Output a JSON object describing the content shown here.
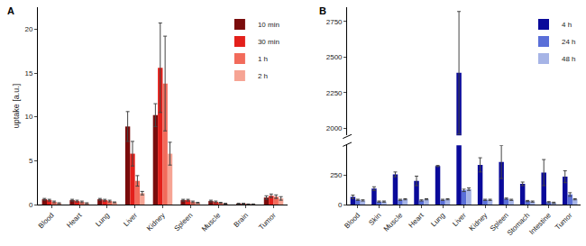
{
  "chart_data": [
    {
      "type": "bar",
      "title": "A",
      "ylabel": "uptake [a.u.]",
      "categories": [
        "Blood",
        "Heart",
        "Lung",
        "Liver",
        "Kidney",
        "Spleen",
        "Muscle",
        "Brain",
        "Tumor"
      ],
      "series": [
        {
          "name": "10 min",
          "color": "#7a0c0c",
          "values": [
            0.6,
            0.5,
            0.6,
            8.9,
            10.2,
            0.5,
            0.4,
            0.1,
            0.8
          ],
          "errors": [
            0.1,
            0.1,
            0.1,
            1.7,
            1.3,
            0.1,
            0.1,
            0.05,
            0.2
          ]
        },
        {
          "name": "30 min",
          "color": "#e3201b",
          "values": [
            0.5,
            0.4,
            0.5,
            5.8,
            15.6,
            0.5,
            0.3,
            0.1,
            1.0
          ],
          "errors": [
            0.1,
            0.1,
            0.1,
            1.4,
            5.1,
            0.1,
            0.1,
            0.05,
            0.2
          ]
        },
        {
          "name": "1 h",
          "color": "#f26b5b",
          "values": [
            0.3,
            0.3,
            0.4,
            2.7,
            13.8,
            0.3,
            0.2,
            0.05,
            0.9
          ],
          "errors": [
            0.1,
            0.1,
            0.1,
            0.6,
            5.4,
            0.1,
            0.05,
            0.02,
            0.2
          ]
        },
        {
          "name": "2 h",
          "color": "#f6a494",
          "values": [
            0.15,
            0.15,
            0.25,
            1.3,
            5.8,
            0.2,
            0.1,
            0.05,
            0.7
          ],
          "errors": [
            0.05,
            0.05,
            0.05,
            0.2,
            1.3,
            0.05,
            0.05,
            0.02,
            0.2
          ]
        }
      ],
      "ylim": [
        0,
        22.5
      ],
      "yticks": [
        0,
        5,
        10,
        15,
        20
      ],
      "grid": false,
      "legend": "top right"
    },
    {
      "type": "bar",
      "title": "B",
      "categories": [
        "Blood",
        "Skin",
        "Muscle",
        "Heart",
        "Lung",
        "Liver",
        "Kidney",
        "Spleen",
        "Stomach",
        "Intestine",
        "Tumor"
      ],
      "series": [
        {
          "name": "4 h",
          "color": "#0a0a9a",
          "values": [
            65,
            135,
            255,
            200,
            325,
            2390,
            335,
            360,
            175,
            270,
            235
          ],
          "errors": [
            15,
            15,
            20,
            40,
            5,
            430,
            60,
            140,
            15,
            110,
            50
          ]
        },
        {
          "name": "24 h",
          "color": "#5a6fd8",
          "values": [
            40,
            25,
            40,
            35,
            40,
            120,
            40,
            50,
            30,
            20,
            85
          ],
          "errors": [
            5,
            5,
            5,
            5,
            5,
            10,
            5,
            5,
            5,
            5,
            15
          ]
        },
        {
          "name": "48 h",
          "color": "#a6b4e6",
          "values": [
            35,
            25,
            45,
            45,
            45,
            130,
            40,
            40,
            25,
            15,
            45
          ],
          "errors": [
            5,
            5,
            5,
            5,
            5,
            10,
            5,
            5,
            5,
            5,
            5
          ]
        }
      ],
      "ylim": [
        0,
        2850
      ],
      "yticks": [
        0,
        250,
        2000,
        2250,
        2500,
        2750
      ],
      "grid": false,
      "legend": "top right"
    }
  ]
}
